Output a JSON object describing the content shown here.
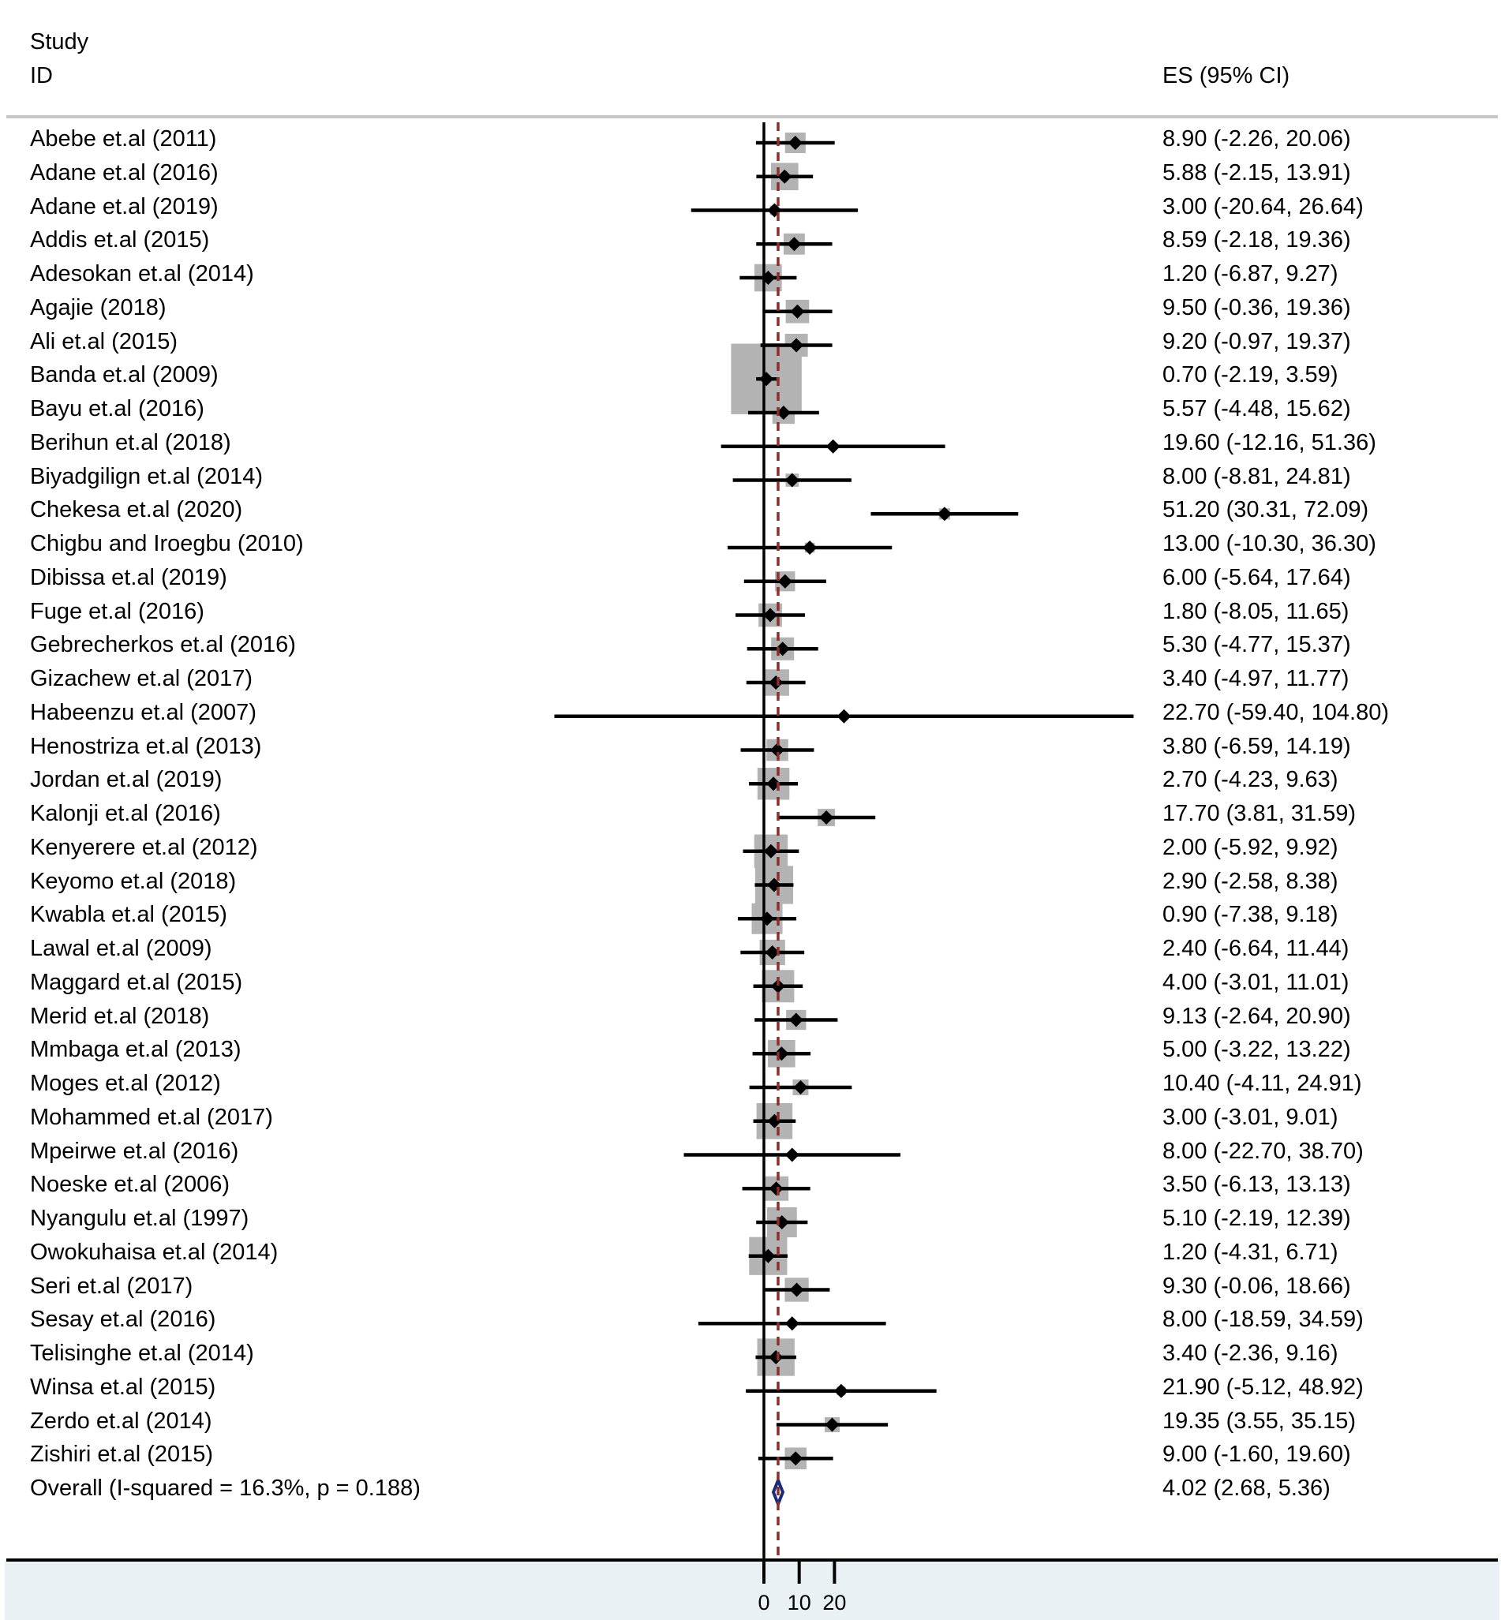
{
  "chart_data": {
    "type": "forest",
    "header": {
      "study_line1": "Study",
      "study_line2": "ID",
      "es_label": "ES (95% CI)"
    },
    "studies": [
      {
        "label": "Abebe et.al (2011)",
        "es": 8.9,
        "lo": -2.26,
        "hi": 20.06,
        "es_text": "8.90 (-2.26, 20.06)",
        "weight": 1.7
      },
      {
        "label": "Adane et.al (2016)",
        "es": 5.88,
        "lo": -2.15,
        "hi": 13.91,
        "es_text": "5.88 (-2.15, 13.91)",
        "weight": 3.0
      },
      {
        "label": "Adane et.al (2019)",
        "es": 3.0,
        "lo": -20.64,
        "hi": 26.64,
        "es_text": "3.00 (-20.64, 26.64)",
        "weight": 0.35
      },
      {
        "label": "Addis et.al (2015)",
        "es": 8.59,
        "lo": -2.18,
        "hi": 19.36,
        "es_text": "8.59 (-2.18, 19.36)",
        "weight": 1.8
      },
      {
        "label": "Adesokan et.al (2014)",
        "es": 1.2,
        "lo": -6.87,
        "hi": 9.27,
        "es_text": "1.20 (-6.87, 9.27)",
        "weight": 3.0
      },
      {
        "label": "Agajie (2018)",
        "es": 9.5,
        "lo": -0.36,
        "hi": 19.36,
        "es_text": "9.50 (-0.36, 19.36)",
        "weight": 2.2
      },
      {
        "label": "Ali et.al (2015)",
        "es": 9.2,
        "lo": -0.97,
        "hi": 19.37,
        "es_text": "9.20 (-0.97, 19.37)",
        "weight": 2.1
      },
      {
        "label": "Banda et.al (2009)",
        "es": 0.7,
        "lo": -2.19,
        "hi": 3.59,
        "es_text": "0.70 (-2.19, 3.59)",
        "weight": 20.0
      },
      {
        "label": "Bayu et.al (2016)",
        "es": 5.57,
        "lo": -4.48,
        "hi": 15.62,
        "es_text": "5.57 (-4.48, 15.62)",
        "weight": 2.0
      },
      {
        "label": "Berihun et.al (2018)",
        "es": 19.6,
        "lo": -12.16,
        "hi": 51.36,
        "es_text": "19.60 (-12.16, 51.36)",
        "weight": 0.2
      },
      {
        "label": "Biyadgilign et.al (2014)",
        "es": 8.0,
        "lo": -8.81,
        "hi": 24.81,
        "es_text": "8.00 (-8.81, 24.81)",
        "weight": 0.7
      },
      {
        "label": "Chekesa et.al (2020)",
        "es": 51.2,
        "lo": 30.31,
        "hi": 72.09,
        "es_text": "51.20 (30.31, 72.09)",
        "weight": 0.5
      },
      {
        "label": "Chigbu and Iroegbu (2010)",
        "es": 13.0,
        "lo": -10.3,
        "hi": 36.3,
        "es_text": "13.00 (-10.30, 36.30)",
        "weight": 0.4
      },
      {
        "label": "Dibissa et.al (2019)",
        "es": 6.0,
        "lo": -5.64,
        "hi": 17.64,
        "es_text": "6.00 (-5.64, 17.64)",
        "weight": 1.6
      },
      {
        "label": "Fuge et.al (2016)",
        "es": 1.8,
        "lo": -8.05,
        "hi": 11.65,
        "es_text": "1.80 (-8.05, 11.65)",
        "weight": 2.2
      },
      {
        "label": "Gebrecherkos et.al (2016)",
        "es": 5.3,
        "lo": -4.77,
        "hi": 15.37,
        "es_text": "5.30 (-4.77, 15.37)",
        "weight": 2.1
      },
      {
        "label": "Gizachew et.al (2017)",
        "es": 3.4,
        "lo": -4.97,
        "hi": 11.77,
        "es_text": "3.40 (-4.97, 11.77)",
        "weight": 2.8
      },
      {
        "label": "Habeenzu et.al (2007)",
        "es": 22.7,
        "lo": -59.4,
        "hi": 104.8,
        "es_text": "22.70 (-59.40, 104.80)",
        "weight": 0.0
      },
      {
        "label": "Henostriza et.al (2013)",
        "es": 3.8,
        "lo": -6.59,
        "hi": 14.19,
        "es_text": "3.80 (-6.59, 14.19)",
        "weight": 1.9
      },
      {
        "label": "Jordan et.al (2019)",
        "es": 2.7,
        "lo": -4.23,
        "hi": 9.63,
        "es_text": "2.70 (-4.23, 9.63)",
        "weight": 4.1
      },
      {
        "label": "Kalonji et.al (2016)",
        "es": 17.7,
        "lo": 3.81,
        "hi": 31.59,
        "es_text": "17.70 (3.81, 31.59)",
        "weight": 1.2
      },
      {
        "label": "Kenyerere et.al (2012)",
        "es": 2.0,
        "lo": -5.92,
        "hi": 9.92,
        "es_text": "2.00 (-5.92, 9.92)",
        "weight": 4.5
      },
      {
        "label": "Keyomo et.al (2018)",
        "es": 2.9,
        "lo": -2.58,
        "hi": 8.38,
        "es_text": "2.90 (-2.58, 8.38)",
        "weight": 5.8
      },
      {
        "label": "Kwabla et.al (2015)",
        "es": 0.9,
        "lo": -7.38,
        "hi": 9.18,
        "es_text": "0.90 (-7.38, 9.18)",
        "weight": 3.8
      },
      {
        "label": "Lawal et.al (2009)",
        "es": 2.4,
        "lo": -6.64,
        "hi": 11.44,
        "es_text": "2.40 (-6.64, 11.44)",
        "weight": 2.6
      },
      {
        "label": "Maggard et.al (2015)",
        "es": 4.0,
        "lo": -3.01,
        "hi": 11.01,
        "es_text": "4.00 (-3.01, 11.01)",
        "weight": 4.2
      },
      {
        "label": "Merid et.al (2018)",
        "es": 9.13,
        "lo": -2.64,
        "hi": 20.9,
        "es_text": "9.13 (-2.64, 20.90)",
        "weight": 1.6
      },
      {
        "label": "Mmbaga et.al (2013)",
        "es": 5.0,
        "lo": -3.22,
        "hi": 13.22,
        "es_text": "5.00 (-3.22, 13.22)",
        "weight": 3.0
      },
      {
        "label": "Moges et.al (2012)",
        "es": 10.4,
        "lo": -4.11,
        "hi": 24.91,
        "es_text": "10.40 (-4.11, 24.91)",
        "weight": 1.0
      },
      {
        "label": "Mohammed et.al (2017)",
        "es": 3.0,
        "lo": -3.01,
        "hi": 9.01,
        "es_text": "3.00 (-3.01, 9.01)",
        "weight": 5.2
      },
      {
        "label": "Mpeirwe et.al (2016)",
        "es": 8.0,
        "lo": -22.7,
        "hi": 38.7,
        "es_text": "8.00 (-22.70, 38.70)",
        "weight": 0.2
      },
      {
        "label": "Noeske et.al (2006)",
        "es": 3.5,
        "lo": -6.13,
        "hi": 13.13,
        "es_text": "3.50 (-6.13, 13.13)",
        "weight": 2.4
      },
      {
        "label": "Nyangulu et.al (1997)",
        "es": 5.1,
        "lo": -2.19,
        "hi": 12.39,
        "es_text": "5.10 (-2.19, 12.39)",
        "weight": 3.6
      },
      {
        "label": "Owokuhaisa et.al (2014)",
        "es": 1.2,
        "lo": -4.31,
        "hi": 6.71,
        "es_text": "1.20 (-4.31, 6.71)",
        "weight": 5.8
      },
      {
        "label": "Seri et.al (2017)",
        "es": 9.3,
        "lo": -0.06,
        "hi": 18.66,
        "es_text": "9.30 (-0.06, 18.66)",
        "weight": 2.3
      },
      {
        "label": "Sesay et.al (2016)",
        "es": 8.0,
        "lo": -18.59,
        "hi": 34.59,
        "es_text": "8.00 (-18.59, 34.59)",
        "weight": 0.2
      },
      {
        "label": "Telisinghe et.al (2014)",
        "es": 3.4,
        "lo": -2.36,
        "hi": 9.16,
        "es_text": "3.40 (-2.36, 9.16)",
        "weight": 5.6
      },
      {
        "label": "Winsa et.al (2015)",
        "es": 21.9,
        "lo": -5.12,
        "hi": 48.92,
        "es_text": "21.90 (-5.12, 48.92)",
        "weight": 0.3
      },
      {
        "label": "Zerdo et.al (2014)",
        "es": 19.35,
        "lo": 3.55,
        "hi": 35.15,
        "es_text": "19.35 (3.55, 35.15)",
        "weight": 0.9
      },
      {
        "label": "Zishiri et.al (2015)",
        "es": 9.0,
        "lo": -1.6,
        "hi": 19.6,
        "es_text": "9.00 (-1.60, 19.60)",
        "weight": 1.9
      }
    ],
    "overall": {
      "label": "Overall  (I-squared = 16.3%, p = 0.188)",
      "es": 4.02,
      "lo": 2.68,
      "hi": 5.36,
      "es_text": "4.02 (2.68, 5.36)"
    },
    "x_ticks": [
      0,
      10,
      20
    ],
    "xlim": [
      -59.4,
      104.8
    ],
    "null_line": 0,
    "colors": {
      "ci_line": "#000000",
      "weight_box": "#b3b3b3",
      "overall_diamond": "#1c2b7a",
      "overall_line": "#8b2e2e",
      "divider": "#c8c8c8",
      "bottom_band": "#e9f1f4"
    }
  }
}
